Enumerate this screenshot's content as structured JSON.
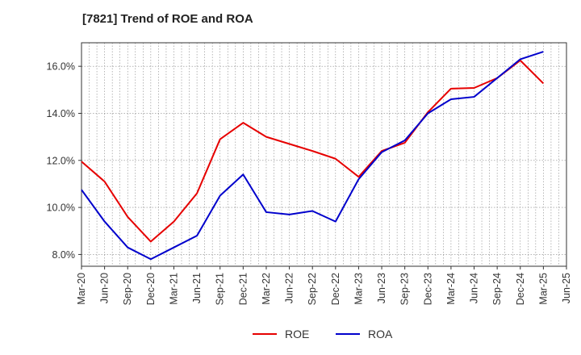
{
  "chart_data": {
    "type": "line",
    "title": "[7821]  Trend of ROE and ROA",
    "xlabel": "",
    "ylabel": "",
    "x": [
      "Mar-20",
      "Jun-20",
      "Sep-20",
      "Dec-20",
      "Mar-21",
      "Jun-21",
      "Sep-21",
      "Dec-21",
      "Mar-22",
      "Jun-22",
      "Sep-22",
      "Dec-22",
      "Mar-23",
      "Jun-23",
      "Sep-23",
      "Dec-23",
      "Mar-24",
      "Jun-24",
      "Sep-24",
      "Dec-24",
      "Mar-25",
      "Jun-25"
    ],
    "ylim": [
      7.5,
      17.0
    ],
    "yticks": [
      8.0,
      10.0,
      12.0,
      14.0,
      16.0
    ],
    "ytick_labels": [
      "8.0%",
      "10.0%",
      "12.0%",
      "14.0%",
      "16.0%"
    ],
    "grid": true,
    "legend_position": "bottom",
    "series": [
      {
        "name": "ROE",
        "color": "#e60000",
        "values": [
          11.95,
          11.1,
          9.6,
          8.55,
          9.4,
          10.6,
          12.9,
          13.6,
          13.0,
          12.7,
          12.4,
          12.07,
          11.3,
          12.4,
          12.75,
          14.05,
          15.05,
          15.08,
          15.5,
          16.25,
          15.27,
          null
        ]
      },
      {
        "name": "ROA",
        "color": "#0000cc",
        "values": [
          10.75,
          9.4,
          8.3,
          7.8,
          8.3,
          8.8,
          10.5,
          11.4,
          9.8,
          9.7,
          9.85,
          9.4,
          11.2,
          12.35,
          12.85,
          14.0,
          14.6,
          14.7,
          15.5,
          16.3,
          16.62,
          null
        ]
      }
    ]
  }
}
